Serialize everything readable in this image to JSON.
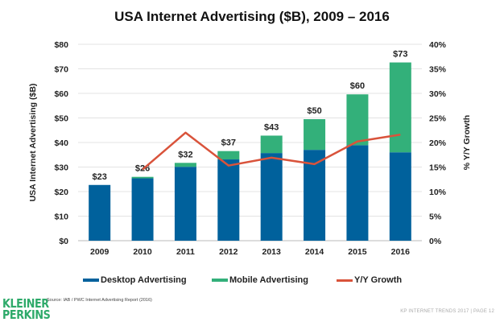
{
  "chart_data": {
    "type": "bar",
    "stacked": true,
    "title": "USA Internet Advertising ($B), 2009 – 2016",
    "xlabel": "",
    "ylabel": "USA Internet Advertising ($B)",
    "ylabel_right": "% Y/Y Growth",
    "categories": [
      "2009",
      "2010",
      "2011",
      "2012",
      "2013",
      "2014",
      "2015",
      "2016"
    ],
    "series": [
      {
        "name": "Desktop Advertising",
        "type": "bar",
        "axis": "left",
        "color": "#00619c",
        "values": [
          22.7,
          25.4,
          30.1,
          33.1,
          35.7,
          37.0,
          38.9,
          36.0
        ]
      },
      {
        "name": "Mobile Advertising",
        "type": "bar",
        "axis": "left",
        "color": "#33b07a",
        "values": [
          0.0,
          0.6,
          1.6,
          3.4,
          7.1,
          12.5,
          20.7,
          36.6
        ]
      },
      {
        "name": "Y/Y Growth",
        "type": "line",
        "axis": "right",
        "color": "#d9533b",
        "values": [
          null,
          14.5,
          22.0,
          15.3,
          16.9,
          15.6,
          20.2,
          21.6
        ]
      }
    ],
    "total_labels": [
      "$23",
      "$26",
      "$32",
      "$37",
      "$43",
      "$50",
      "$60",
      "$73"
    ],
    "ylim": [
      0,
      80
    ],
    "yticks": [
      "$0",
      "$10",
      "$20",
      "$30",
      "$40",
      "$50",
      "$60",
      "$70",
      "$80"
    ],
    "ylim_right": [
      0,
      40
    ],
    "yticks_right": [
      "0%",
      "5%",
      "10%",
      "15%",
      "20%",
      "25%",
      "30%",
      "35%",
      "40%"
    ],
    "grid": true,
    "legend_position": "bottom"
  },
  "legend": {
    "desktop": "Desktop Advertising",
    "mobile": "Mobile Advertising",
    "growth": "Y/Y Growth"
  },
  "source": "Source: IAB / PWC Internet Advertising Report (2016)",
  "logo": {
    "line1": "KLEINER",
    "line2": "PERKINS"
  },
  "footer": "KP INTERNET TRENDS 2017  |  PAGE 12"
}
